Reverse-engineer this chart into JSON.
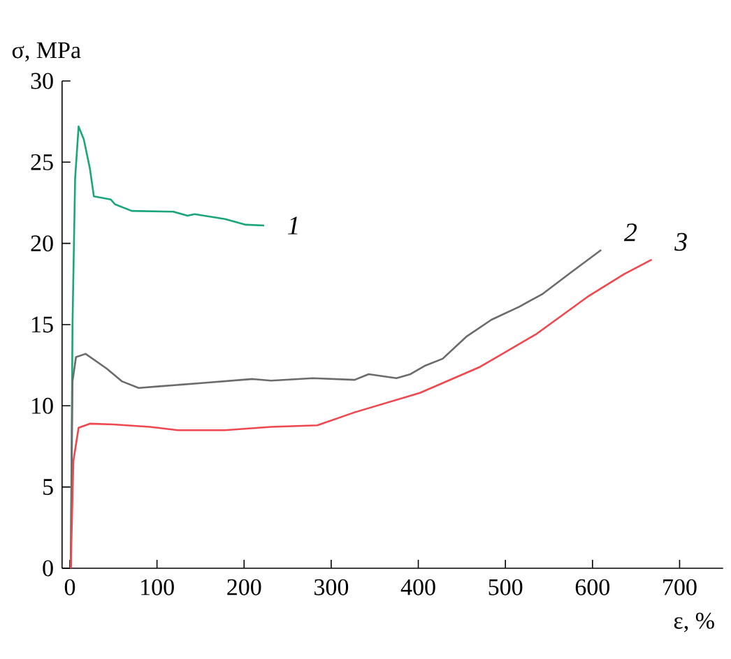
{
  "chart_data": {
    "type": "line",
    "xlabel": "ε, %",
    "ylabel": "σ, MPa",
    "xlim": [
      -9,
      750
    ],
    "ylim": [
      0,
      30
    ],
    "xticks": [
      0,
      100,
      200,
      300,
      400,
      500,
      600,
      700
    ],
    "yticks": [
      0,
      5,
      10,
      15,
      20,
      25,
      30
    ],
    "grid": false,
    "legend": false,
    "marker": "none",
    "line_style": "solid",
    "series": [
      {
        "name": "1",
        "color": "#1aa57a",
        "x": [
          1,
          3,
          6,
          10,
          16,
          23,
          27.5,
          47,
          52,
          71,
          119,
          135,
          143,
          178,
          202,
          223
        ],
        "values": [
          0,
          15,
          24,
          27.2,
          26.4,
          24.6,
          22.9,
          22.7,
          22.4,
          22.0,
          21.95,
          21.7,
          21.8,
          21.5,
          21.15,
          21.1
        ]
      },
      {
        "name": "2",
        "color": "#6b6b6b",
        "x": [
          1,
          3,
          7,
          18,
          42,
          60,
          79,
          103,
          151,
          210,
          231,
          279,
          327,
          343,
          375,
          391,
          407,
          428,
          455,
          484,
          516,
          543,
          575,
          610
        ],
        "values": [
          0,
          11.5,
          13.0,
          13.2,
          12.3,
          11.5,
          11.1,
          11.2,
          11.4,
          11.65,
          11.55,
          11.7,
          11.6,
          11.95,
          11.7,
          11.95,
          12.45,
          12.9,
          14.25,
          15.3,
          16.1,
          16.9,
          18.2,
          19.6
        ]
      },
      {
        "name": "3",
        "color": "#f0474f",
        "x": [
          1,
          4,
          10,
          23,
          50,
          92,
          124,
          178,
          231,
          284,
          327,
          402,
          471,
          535,
          594,
          636,
          668
        ],
        "values": [
          0,
          6.6,
          8.65,
          8.9,
          8.85,
          8.7,
          8.5,
          8.5,
          8.7,
          8.8,
          9.6,
          10.8,
          12.4,
          14.4,
          16.7,
          18.1,
          19.0
        ]
      }
    ]
  }
}
